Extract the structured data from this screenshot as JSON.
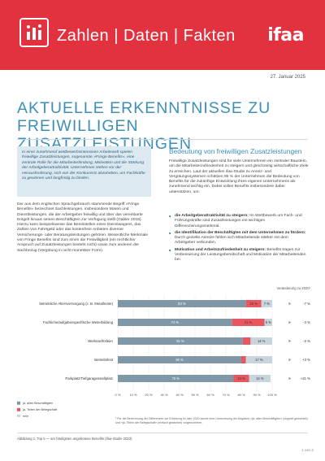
{
  "header": {
    "title": "Zahlen | Daten | Fakten",
    "brand": "ifaa"
  },
  "date": "27. Januar 2025",
  "headline": {
    "line1": "AKTUELLE ERKENNTNISSE ZU",
    "line2": "FREIWILLIGEN ZUSATZLEISTUNGEN"
  },
  "intro": "In einer zunehmend wettbewerbsintensiven Arbeitswelt spielen freiwillige Zusatzleistungen, sogenannte »Fringe Benefits«, eine zentrale Rolle für die Mitarbeiterbindung, Motivation und die Stärkung der Arbeitgeberattraktivität. Unternehmen stehen vor der Herausforderung, sich von der Konkurrenz abzuheben, um Fachkräfte zu gewinnen und langfristig zu binden.",
  "body_left": "Der aus dem englischen Sprachgebrauch stammende Begriff »Fringe Benefits« bezeichnet Sachleistungen, insbesondere Waren und Dienstleistungen, die der Arbeitgeber freiwillig und über das vereinbarte Entgelt hinaus seinen Beschäftigten zur Verfügung stellt (Gabler 2018). Hierzu kann beispielsweise das Bereitstellen eines Dienstwagens, das Zahlen von Fahrtgeld oder das kostenfreie Anbieten diverser Versicherungs- oder Beratungsleistungen gehören. Wesentliche Merkmale von Fringe Benefits sind zum einen die Freiwilligkeit (ein rechtlicher Anspruch auf Zusatzleistungen besteht nicht) sowie zum anderen der Sachbezug (Vergütung in nicht-monetärer Form).",
  "right": {
    "section_title": "Bedeutung von freiwilligen Zusatzleistungen",
    "body": "Freiwillige Zusatzleistungen sind für viele Unternehmen ein zentraler Baustein, um die Mitarbeiterzufriedenheit zu steigern und gleichzeitig wirtschaftliche Ziele zu erreichen. Laut der aktuellen ifaa-Studie zu Anreiz- und Vergütungssystemen schätzen 85 % der Unternehmen die Bedeutung von Benefits für die zukünftige Entwicklung ihres eigenen Unternehmens als zunehmend wichtig ein. Dabei sollen Benefits insbesondere dabei unterstützen, um:",
    "bullets": [
      {
        "bold": "die Arbeitgeberattraktivität zu steigern:",
        "text": " Im Wettbewerb um Fach- und Führungskräfte sind Zusatzleistungen ein wichtiges Differenzierungsmerkmal."
      },
      {
        "bold": "die Identifikation der Beschäftigten mit dem Unternehmen zu fördern:",
        "text": " Durch gezielte Anreize fühlen sich Mitarbeitende stärker mit dem Arbeitgeber verbunden."
      },
      {
        "bold": "Motivation und Arbeitszufriedenheit zu steigern:",
        "text": " Benefits tragen zur Verbesserung der Leistungsbereitschaft und Motivation der Mitarbeitenden bei."
      }
    ]
  },
  "chart_data": {
    "type": "bar",
    "orientation": "horizontal-stacked",
    "change_header": "Veränderung zu 2020¹",
    "categories": [
      "betriebliche Altersversorgung (z. B. Metallrente)",
      "Fachliche/aufgabenspezifische Weiterbildung",
      "Weihnachtsfeier",
      "Betriebsfest",
      "Parkplatz/Tiefgaragenstellplatz"
    ],
    "series": [
      {
        "name": "ja, allen Beschäftigten",
        "color": "#7f97a6",
        "values": [
          83,
          74,
          81,
          80,
          75
        ]
      },
      {
        "name": "ja, Teilen der Belegschaft",
        "color": "#e8565f",
        "values": [
          10,
          21,
          5,
          3,
          10
        ]
      },
      {
        "name": "nein",
        "color": "#c9d5dc",
        "values": [
          7,
          5,
          14,
          17,
          14
        ]
      }
    ],
    "data_labels": [
      [
        "83 %",
        "10 %",
        "7 %"
      ],
      [
        "74 %",
        "21 %",
        "5 %"
      ],
      [
        "81 %",
        "",
        "14 %"
      ],
      [
        "80 %",
        "",
        "17 %"
      ],
      [
        "75 %",
        "10 %",
        "14 %"
      ]
    ],
    "changes": [
      "-7 %",
      "-3 %",
      "-2 %",
      "+3 %",
      "+21 %"
    ],
    "xlim": [
      0,
      100
    ],
    "xticks": [
      "0 %",
      "10 %",
      "20 %",
      "30 %",
      "40 %",
      "50 %",
      "60 %",
      "70 %",
      "80 %",
      "90 %",
      "100 %"
    ]
  },
  "chart_note": "¹ Für die Berechnung der Differenzen zur Erhebung im Jahr 2020 wurde eine Umrechnung der Angaben »ja, allen Beschäftigten« (doppelt gewichtet) und »ja, Teilen der Belegschaft« (einfach gewichtet) vorgenommen.",
  "caption": "Abbildung 1: Top 5 — am häufigsten angebotene Benefits (ifaa-Studie 2023)",
  "footer": "1 von 3",
  "colors": {
    "accent": "#e2313f",
    "headline": "#3d8fb7"
  }
}
